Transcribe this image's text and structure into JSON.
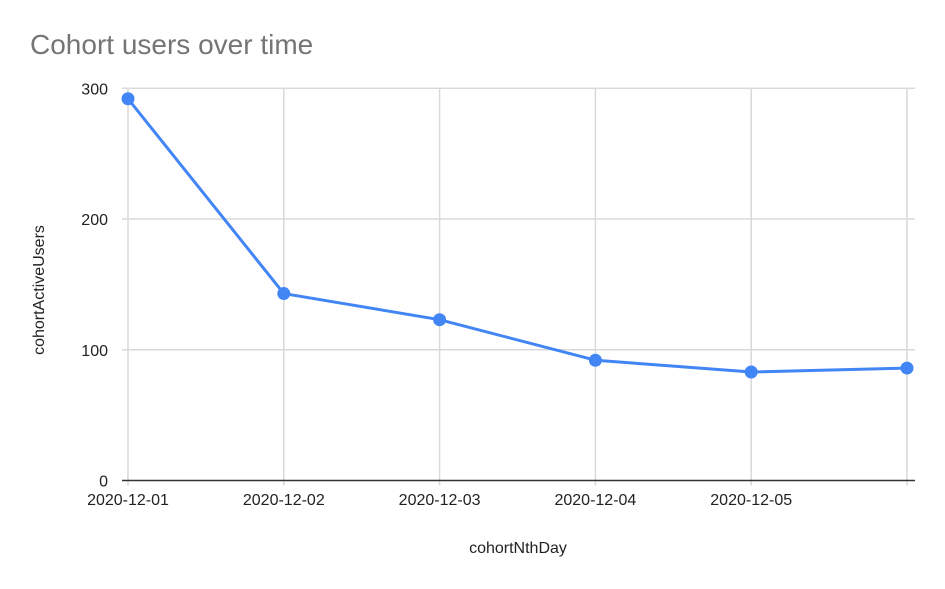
{
  "chart_data": {
    "type": "line",
    "title": "Cohort users over time",
    "xlabel": "cohortNthDay",
    "ylabel": "cohortActiveUsers",
    "categories": [
      "2020-12-01",
      "2020-12-02",
      "2020-12-03",
      "2020-12-04",
      "2020-12-05",
      ""
    ],
    "series": [
      {
        "values": [
          292,
          143,
          123,
          92,
          83,
          86
        ],
        "color": "#4285f4"
      }
    ],
    "ylim": [
      0,
      300
    ],
    "yticks": [
      "0",
      "100",
      "200",
      "300"
    ],
    "grid": true,
    "legend": "none",
    "colors": {
      "title": "#757575",
      "grid": "#d9d9d9",
      "axis": "#333333",
      "text": "#222222"
    }
  }
}
